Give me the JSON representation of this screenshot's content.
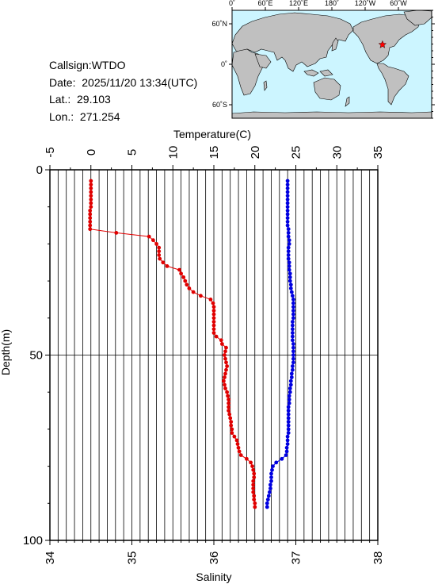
{
  "info": {
    "callsign": "Callsign:WTDO",
    "date": "Date:  2025/11/20 13:34(UTC)",
    "lat": "Lat.:  29.103",
    "lon": "Lon.:  271.254"
  },
  "map": {
    "top_ticks": [
      "0˚",
      "60˚E",
      "120˚E",
      "180˚",
      "120˚W",
      "60˚W"
    ],
    "lat_ticks": [
      "60˚N",
      "0˚",
      "60˚S"
    ],
    "ocean_color": "#ccf5ff",
    "land_color": "#c0c0c0",
    "marker_color": "#ff0000",
    "marker_lon": 271.254,
    "marker_lat": 29.103
  },
  "chart_data": {
    "type": "line",
    "ylabel": "Depth(m)",
    "ylim": [
      0,
      100
    ],
    "yticks": [
      "0",
      "50",
      "100"
    ],
    "top_axis": {
      "label": "Temperature(C)",
      "lim": [
        -5,
        35
      ],
      "ticks": [
        "-5",
        "0",
        "5",
        "10",
        "15",
        "20",
        "25",
        "30",
        "35"
      ]
    },
    "bottom_axis": {
      "label": "Salinity",
      "lim": [
        34,
        38
      ],
      "ticks": [
        "34",
        "35",
        "36",
        "37",
        "38"
      ]
    },
    "grid": true,
    "series": [
      {
        "quantity": "temperature",
        "color": "#e00000",
        "depth": [
          3,
          4,
          5,
          6,
          7,
          8,
          9,
          10,
          11,
          12,
          13,
          14,
          15,
          16,
          17,
          18,
          19,
          20,
          21,
          22,
          23,
          24,
          25,
          26,
          27,
          28,
          29,
          30,
          31,
          32,
          33,
          34,
          35,
          36,
          37,
          38,
          39,
          40,
          41,
          42,
          43,
          44,
          45,
          46,
          47,
          48,
          49,
          50,
          51,
          52,
          53,
          54,
          55,
          56,
          57,
          58,
          59,
          60,
          61,
          62,
          63,
          64,
          65,
          66,
          67,
          68,
          69,
          70,
          71,
          72,
          73,
          74,
          75,
          76,
          77,
          78,
          79,
          80,
          81,
          82,
          83,
          84,
          85,
          86,
          87,
          88,
          89,
          90,
          91
        ],
        "values": [
          0.0,
          0.0,
          0.0,
          0.0,
          0.0,
          0.0,
          0.0,
          0.0,
          -0.1,
          -0.1,
          -0.1,
          -0.1,
          -0.1,
          -0.1,
          3.1,
          7.1,
          7.6,
          8.0,
          8.3,
          8.3,
          8.3,
          8.4,
          8.8,
          9.3,
          10.8,
          11.0,
          11.3,
          11.5,
          11.7,
          12.0,
          12.5,
          13.4,
          14.6,
          14.9,
          15.0,
          15.0,
          15.0,
          15.0,
          15.0,
          15.0,
          15.0,
          15.0,
          15.3,
          15.9,
          16.0,
          16.5,
          16.4,
          16.3,
          16.4,
          16.5,
          16.6,
          16.5,
          16.4,
          16.3,
          16.2,
          16.3,
          16.4,
          16.6,
          16.7,
          16.8,
          16.8,
          16.8,
          16.8,
          16.9,
          17.0,
          17.1,
          17.1,
          17.2,
          17.2,
          17.5,
          17.8,
          17.9,
          18.0,
          18.1,
          18.3,
          19.0,
          19.5,
          19.7,
          19.8,
          19.9,
          19.9,
          19.8,
          19.8,
          19.8,
          19.8,
          19.9,
          19.9,
          20.0,
          20.0
        ]
      },
      {
        "quantity": "salinity",
        "color": "#0000e0",
        "depth": [
          3,
          4,
          5,
          6,
          7,
          8,
          9,
          10,
          11,
          12,
          13,
          14,
          15,
          16,
          17,
          18,
          19,
          20,
          21,
          22,
          23,
          24,
          25,
          26,
          27,
          28,
          29,
          30,
          31,
          32,
          33,
          34,
          35,
          36,
          37,
          38,
          39,
          40,
          41,
          42,
          43,
          44,
          45,
          46,
          47,
          48,
          49,
          50,
          51,
          52,
          53,
          54,
          55,
          56,
          57,
          58,
          59,
          60,
          61,
          62,
          63,
          64,
          65,
          66,
          67,
          68,
          69,
          70,
          71,
          72,
          73,
          74,
          75,
          76,
          77,
          78,
          79,
          80,
          81,
          82,
          83,
          84,
          85,
          86,
          87,
          88,
          89,
          90,
          91
        ],
        "values": [
          36.9,
          36.9,
          36.9,
          36.9,
          36.9,
          36.9,
          36.9,
          36.9,
          36.9,
          36.9,
          36.9,
          36.9,
          36.9,
          36.91,
          36.91,
          36.91,
          36.92,
          36.92,
          36.91,
          36.91,
          36.91,
          36.91,
          36.92,
          36.92,
          36.92,
          36.93,
          36.93,
          36.93,
          36.94,
          36.94,
          36.95,
          36.96,
          36.97,
          36.97,
          36.97,
          36.97,
          36.97,
          36.97,
          36.96,
          36.96,
          36.96,
          36.96,
          36.96,
          36.96,
          36.97,
          36.97,
          36.97,
          36.97,
          36.97,
          36.97,
          36.96,
          36.96,
          36.95,
          36.95,
          36.94,
          36.94,
          36.93,
          36.93,
          36.92,
          36.92,
          36.92,
          36.91,
          36.91,
          36.91,
          36.91,
          36.91,
          36.91,
          36.91,
          36.91,
          36.9,
          36.9,
          36.9,
          36.89,
          36.89,
          36.88,
          36.83,
          36.76,
          36.72,
          36.71,
          36.7,
          36.7,
          36.7,
          36.69,
          36.69,
          36.68,
          36.67,
          36.66,
          36.65,
          36.65
        ]
      }
    ]
  }
}
